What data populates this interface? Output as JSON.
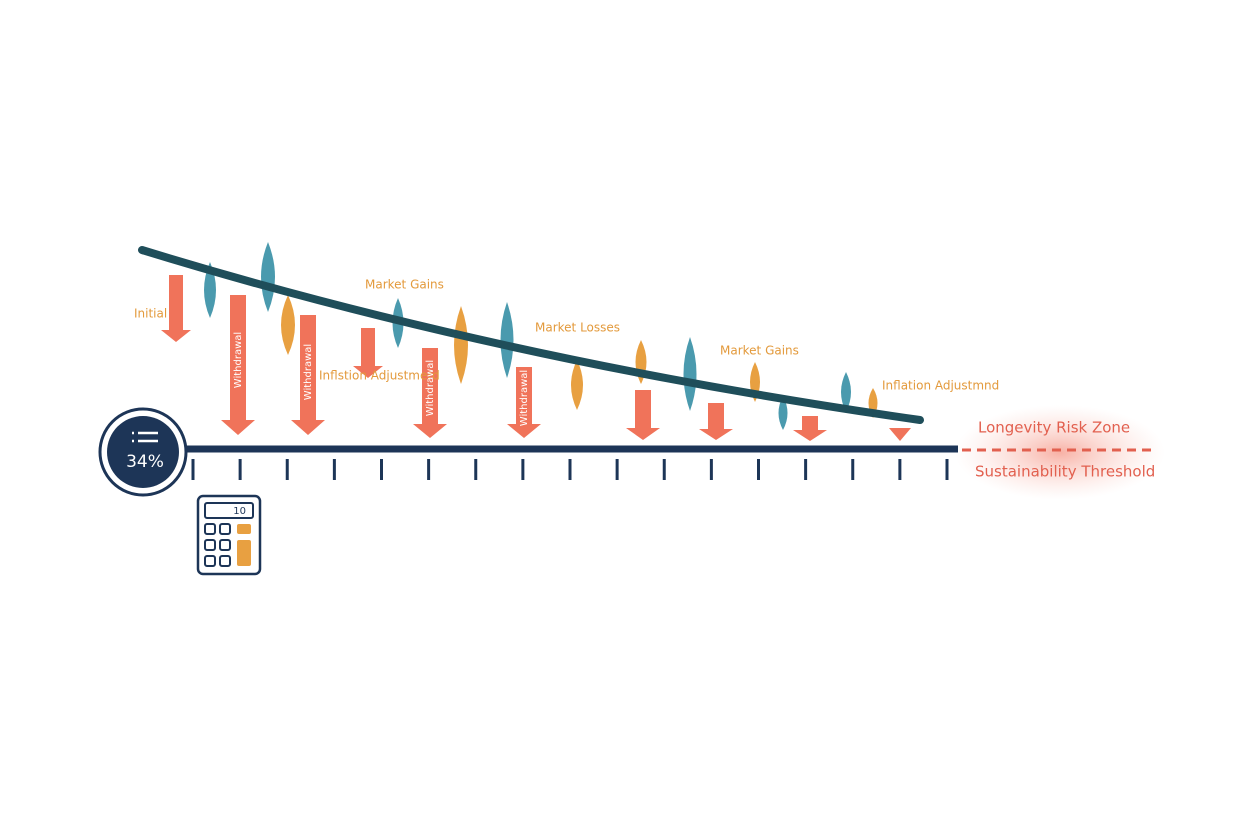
{
  "badge": {
    "label": "34%"
  },
  "calculator": {
    "display": "10"
  },
  "annotations": [
    {
      "label": "Initial"
    },
    {
      "label": "Market Gains"
    },
    {
      "label": "Inflstion Adjustmerd"
    },
    {
      "label": "Market Losses"
    },
    {
      "label": "Market Gains"
    },
    {
      "label": "Inflation Adjustmnd"
    }
  ],
  "withdrawal_labels": [
    "Withdrawal",
    "Withdrawal",
    "Withdrawal",
    "Withdrawal"
  ],
  "zones": {
    "upper": "Longevity Risk Zone",
    "lower": "Sustainability Threshold"
  }
}
